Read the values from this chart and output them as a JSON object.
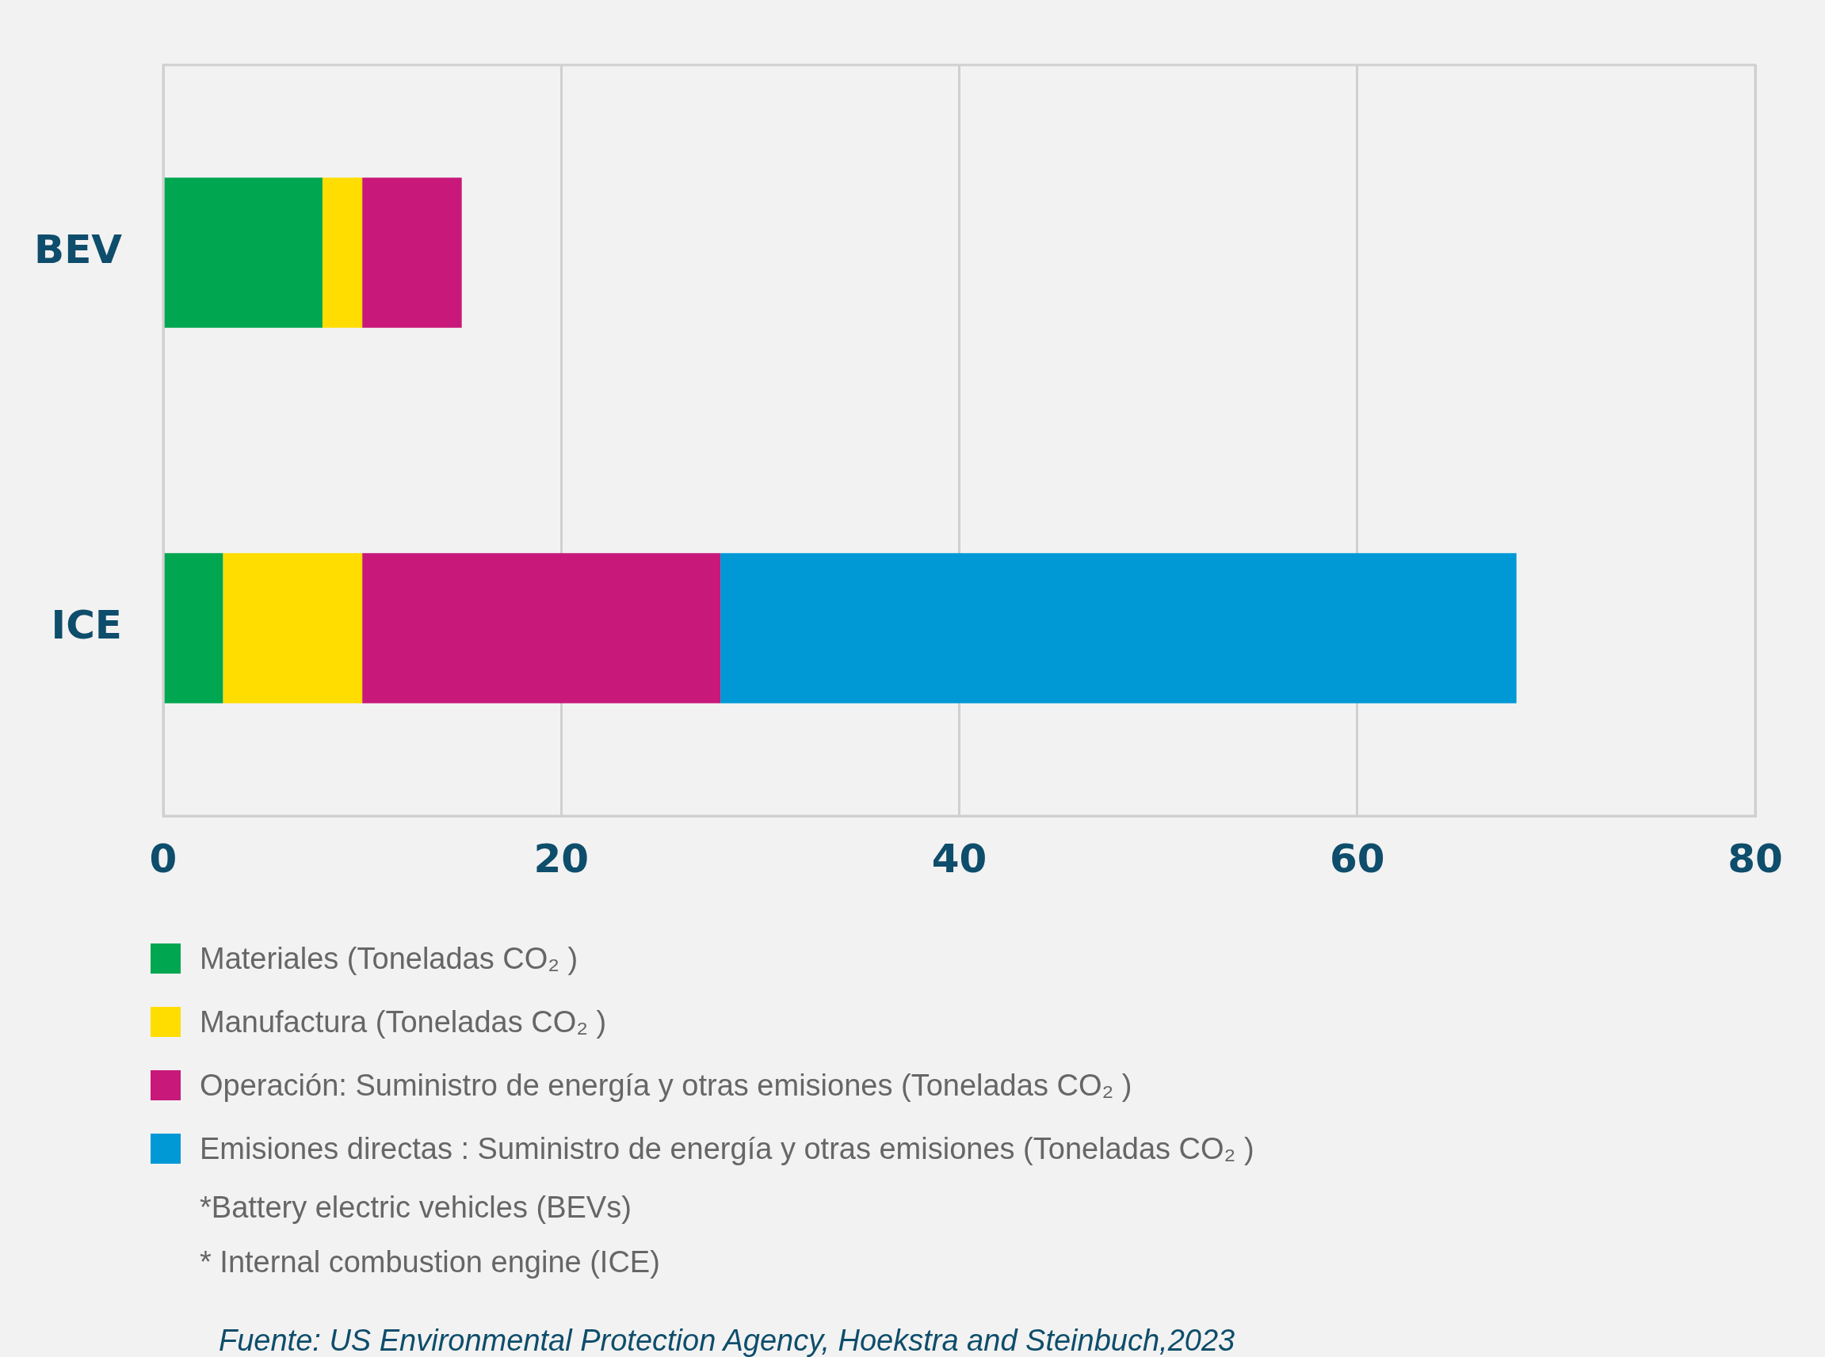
{
  "chart_data": {
    "type": "bar",
    "orientation": "horizontal",
    "stacked": true,
    "categories": [
      "BEV",
      "ICE"
    ],
    "series": [
      {
        "name": "Materiales (Toneladas CO₂ )",
        "color": "#00a650",
        "values": [
          8,
          3
        ]
      },
      {
        "name": "Manufactura (Toneladas CO₂ )",
        "color": "#ffdd00",
        "values": [
          2,
          7
        ]
      },
      {
        "name": "Operación: Suministro de energía y otras emisiones (Toneladas CO₂ )",
        "color": "#c8197a",
        "values": [
          5,
          18
        ]
      },
      {
        "name": "Emisiones directas : Suministro de energía y otras emisiones (Toneladas CO₂ )",
        "color": "#0099d6",
        "values": [
          0,
          40
        ]
      }
    ],
    "xlim": [
      0,
      80
    ],
    "xticks": [
      0,
      20,
      40,
      60,
      80
    ],
    "grid": "x",
    "legend": "bottom",
    "annotations": [
      "*Battery electric vehicles (BEVs)",
      "* Internal combustion engine (ICE)",
      "Fuente: US Environmental Protection Agency, Hoekstra and Steinbuch,2023"
    ]
  }
}
